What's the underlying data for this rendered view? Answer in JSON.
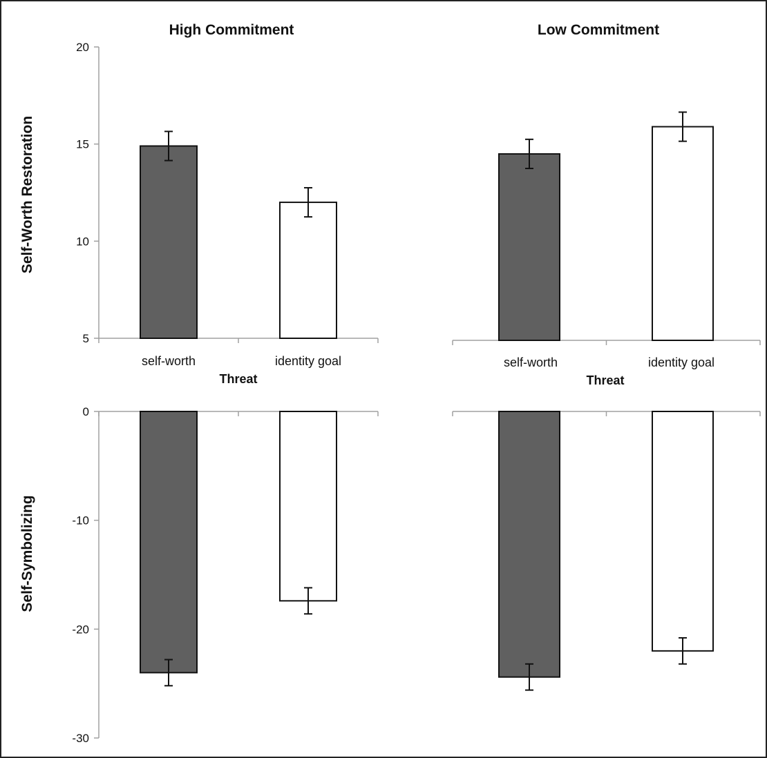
{
  "chart_data": [
    {
      "type": "bar",
      "panel": "top-left",
      "title": "High Commitment",
      "ylabel": "Self-Worth Restoration",
      "xlabel": "Threat",
      "categories": [
        "self-worth",
        "identity goal"
      ],
      "values": [
        14.9,
        12.0
      ],
      "errors": [
        0.75,
        0.75
      ],
      "colors": [
        "#606060",
        "#ffffff"
      ],
      "ylim": [
        5,
        20
      ],
      "yticks": [
        5,
        10,
        15,
        20
      ]
    },
    {
      "type": "bar",
      "panel": "top-right",
      "title": "Low Commitment",
      "xlabel": "Threat",
      "categories": [
        "self-worth",
        "identity goal"
      ],
      "values": [
        14.6,
        16.0
      ],
      "errors": [
        0.75,
        0.75
      ],
      "colors": [
        "#606060",
        "#ffffff"
      ],
      "ylim": [
        5,
        20
      ]
    },
    {
      "type": "bar",
      "panel": "bottom-left",
      "ylabel": "Self-Symbolizing",
      "values": [
        -24.0,
        -17.4
      ],
      "errors": [
        1.2,
        1.2
      ],
      "colors": [
        "#606060",
        "#ffffff"
      ],
      "ylim": [
        -30,
        0
      ],
      "yticks": [
        0,
        -10,
        -20,
        -30
      ]
    },
    {
      "type": "bar",
      "panel": "bottom-right",
      "values": [
        -24.4,
        -22.0
      ],
      "errors": [
        1.2,
        1.2
      ],
      "colors": [
        "#606060",
        "#ffffff"
      ],
      "ylim": [
        -30,
        0
      ]
    }
  ]
}
